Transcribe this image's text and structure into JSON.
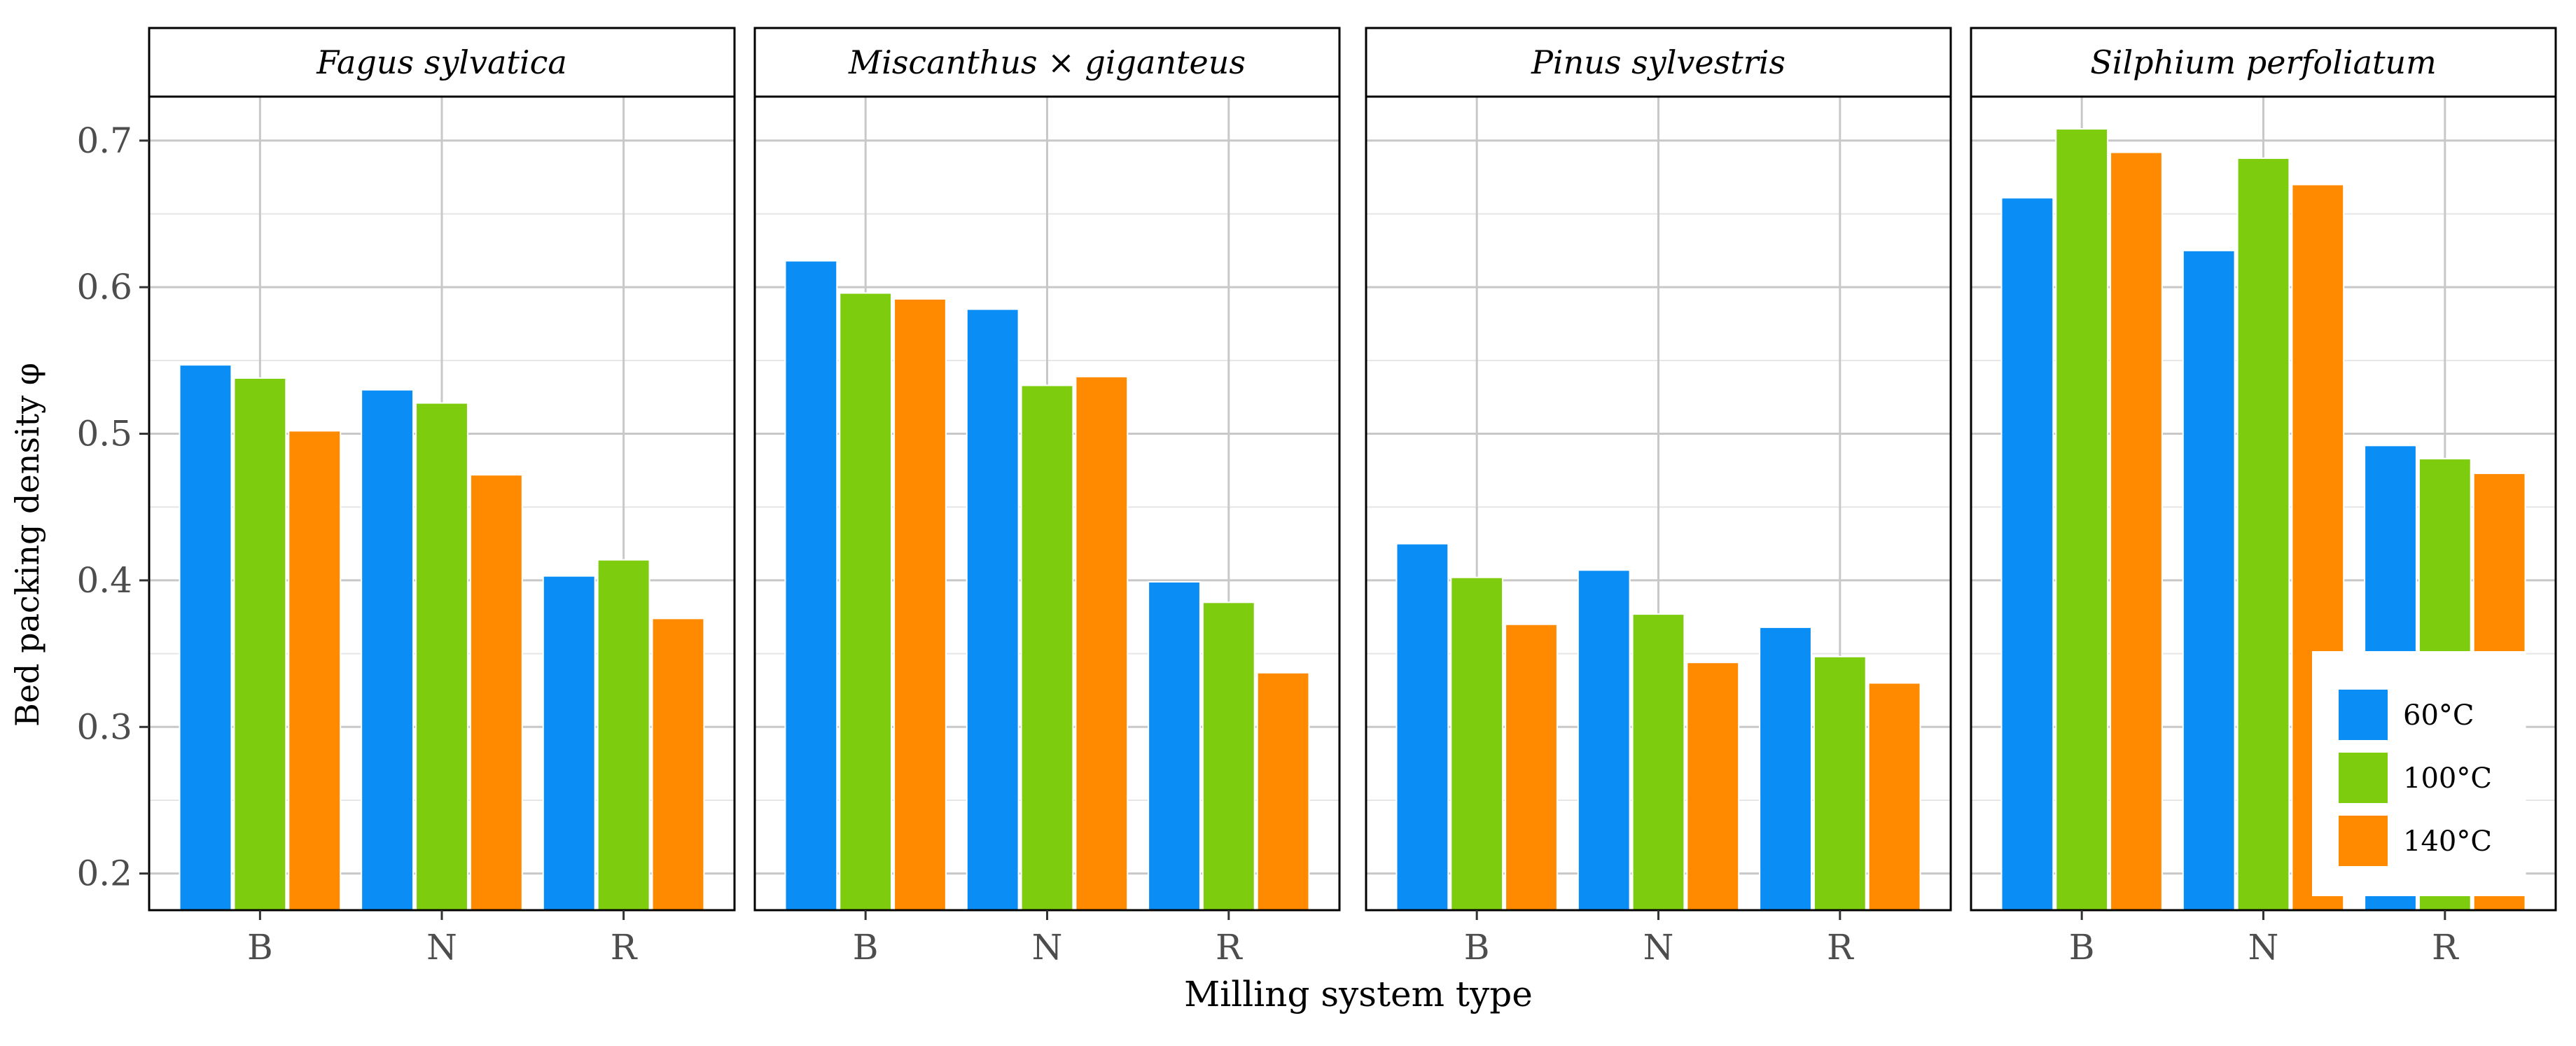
{
  "chart_data": {
    "type": "bar",
    "xlabel": "Milling system type",
    "ylabel": "Bed packing density   φ",
    "ylim": [
      0.175,
      0.73
    ],
    "yticks": [
      0.2,
      0.3,
      0.4,
      0.5,
      0.6,
      0.7
    ],
    "ytick_labels": [
      "0.2",
      "0.3",
      "0.4",
      "0.5",
      "0.6",
      "0.7"
    ],
    "grid": true,
    "categories": [
      "B",
      "N",
      "R"
    ],
    "legend": {
      "position": "bottom-right",
      "entries": [
        "60°C",
        "100°C",
        "140°C"
      ]
    },
    "series_colors": [
      "#0A8EF5",
      "#7DCC0E",
      "#FF8A00"
    ],
    "panels": [
      {
        "title": "Fagus sylvatica",
        "series": [
          {
            "name": "60°C",
            "values": [
              0.547,
              0.53,
              0.403
            ]
          },
          {
            "name": "100°C",
            "values": [
              0.538,
              0.521,
              0.414
            ]
          },
          {
            "name": "140°C",
            "values": [
              0.502,
              0.472,
              0.374
            ]
          }
        ]
      },
      {
        "title": "Miscanthus × giganteus",
        "series": [
          {
            "name": "60°C",
            "values": [
              0.618,
              0.585,
              0.399
            ]
          },
          {
            "name": "100°C",
            "values": [
              0.596,
              0.533,
              0.385
            ]
          },
          {
            "name": "140°C",
            "values": [
              0.592,
              0.539,
              0.337
            ]
          }
        ]
      },
      {
        "title": "Pinus sylvestris",
        "series": [
          {
            "name": "60°C",
            "values": [
              0.425,
              0.407,
              0.368
            ]
          },
          {
            "name": "100°C",
            "values": [
              0.402,
              0.377,
              0.348
            ]
          },
          {
            "name": "140°C",
            "values": [
              0.37,
              0.344,
              0.33
            ]
          }
        ]
      },
      {
        "title": "Silphium perfoliatum",
        "series": [
          {
            "name": "60°C",
            "values": [
              0.661,
              0.625,
              0.492
            ]
          },
          {
            "name": "100°C",
            "values": [
              0.708,
              0.688,
              0.483
            ]
          },
          {
            "name": "140°C",
            "values": [
              0.692,
              0.67,
              0.473
            ]
          }
        ]
      }
    ]
  }
}
